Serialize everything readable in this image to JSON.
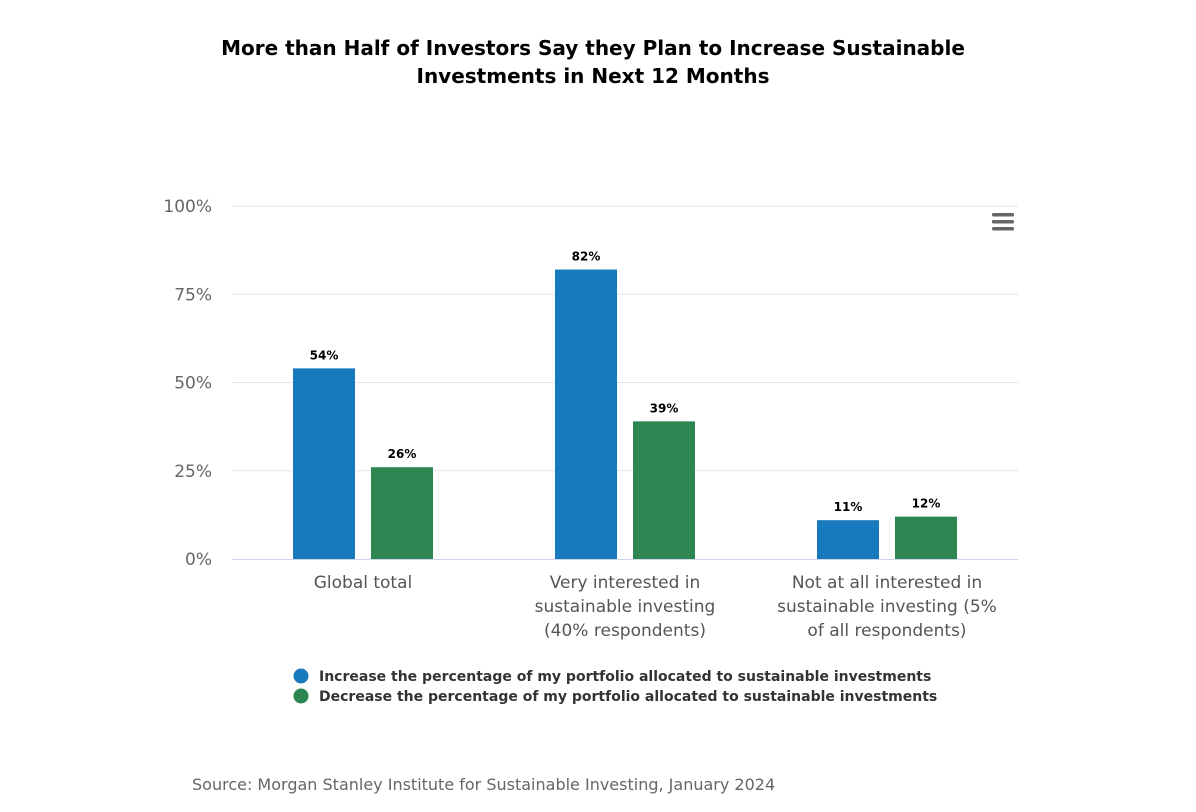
{
  "chart_data": {
    "type": "bar",
    "title_lines": [
      "More than Half of Investors Say they Plan to Increase Sustainable",
      "Investments in Next 12 Months"
    ],
    "categories": [
      [
        "Global total"
      ],
      [
        "Very interested in",
        "sustainable investing",
        "(40% respondents)"
      ],
      [
        "Not at all interested in",
        "sustainable investing (5%",
        "of all respondents)"
      ]
    ],
    "series": [
      {
        "name": "Increase the percentage of my portfolio allocated to sustainable investments",
        "color": "#1979bd",
        "values": [
          54,
          82,
          11
        ],
        "labels": [
          "54%",
          "82%",
          "11%"
        ]
      },
      {
        "name": "Decrease the percentage of my portfolio allocated to sustainable investments",
        "color": "#2d8651",
        "values": [
          26,
          39,
          12
        ],
        "labels": [
          "26%",
          "39%",
          "12%"
        ]
      }
    ],
    "ylim": [
      0,
      100
    ],
    "yticks": [
      0,
      25,
      50,
      75,
      100
    ],
    "ytick_labels": [
      "0%",
      "25%",
      "50%",
      "75%",
      "100%"
    ],
    "grid": true,
    "legend_position": "bottom-left",
    "source": "Source: Morgan Stanley Institute for Sustainable Investing, January 2024"
  },
  "menu": {
    "icon": "hamburger-menu-icon"
  }
}
